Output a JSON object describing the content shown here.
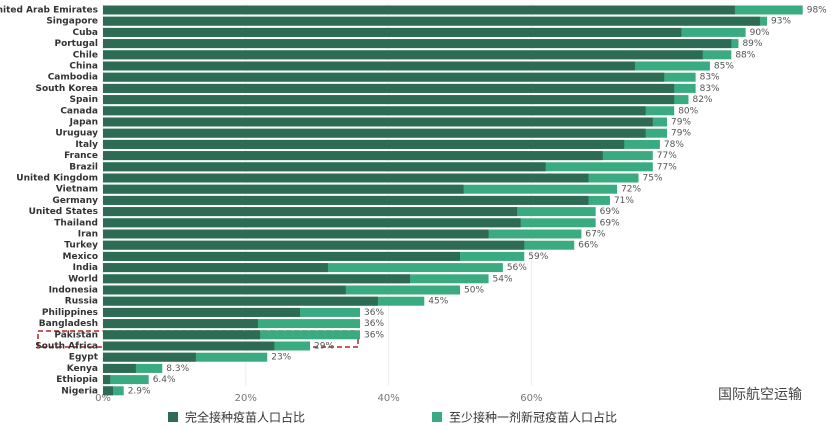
{
  "chart_data": {
    "type": "bar",
    "orientation": "horizontal",
    "categories": [
      "United Arab Emirates",
      "Singapore",
      "Cuba",
      "Portugal",
      "Chile",
      "China",
      "Cambodia",
      "South Korea",
      "Spain",
      "Canada",
      "Japan",
      "Uruguay",
      "Italy",
      "France",
      "Brazil",
      "United Kingdom",
      "Vietnam",
      "Germany",
      "United States",
      "Thailand",
      "Iran",
      "Turkey",
      "Mexico",
      "India",
      "World",
      "Indonesia",
      "Russia",
      "Philippines",
      "Bangladesh",
      "Pakistan",
      "South Africa",
      "Egypt",
      "Kenya",
      "Ethiopia",
      "Nigeria"
    ],
    "series": [
      {
        "name": "至少接种一剂新冠疫苗人口占比",
        "color": "#3aaa80",
        "values": [
          98,
          93,
          90,
          89,
          88,
          85,
          83,
          83,
          82,
          80,
          79,
          79,
          78,
          77,
          77,
          75,
          72,
          71,
          69,
          69,
          67,
          66,
          59,
          56,
          54,
          50,
          45,
          36,
          36,
          36,
          29,
          23,
          8.3,
          6.4,
          2.9
        ],
        "value_labels": [
          "98%",
          "93%",
          "90%",
          "89%",
          "88%",
          "85%",
          "83%",
          "83%",
          "82%",
          "80%",
          "79%",
          "79%",
          "78%",
          "77%",
          "77%",
          "75%",
          "72%",
          "71%",
          "69%",
          "69%",
          "67%",
          "66%",
          "59%",
          "56%",
          "54%",
          "50%",
          "45%",
          "36%",
          "36%",
          "36%",
          "29%",
          "23%",
          "8.3%",
          "6.4%",
          "2.9%"
        ]
      },
      {
        "name": "完全接种疫苗人口占比",
        "color": "#2e6b55",
        "values": [
          88.5,
          92,
          81,
          88,
          84,
          74.5,
          78.6,
          80,
          80,
          76,
          77,
          76,
          73,
          70,
          62,
          68,
          50.5,
          68,
          58,
          58.5,
          54,
          59,
          50,
          31.5,
          43,
          34,
          38.5,
          27.6,
          21.7,
          22,
          24,
          13,
          4.6,
          1,
          1.4
        ]
      }
    ],
    "xlim": [
      0,
      100
    ],
    "xticks": [
      {
        "value": 0,
        "label": "0%"
      },
      {
        "value": 20,
        "label": "20%"
      },
      {
        "value": 40,
        "label": "40%"
      },
      {
        "value": 60,
        "label": "60%"
      }
    ],
    "watermark": "国际航空运输"
  }
}
